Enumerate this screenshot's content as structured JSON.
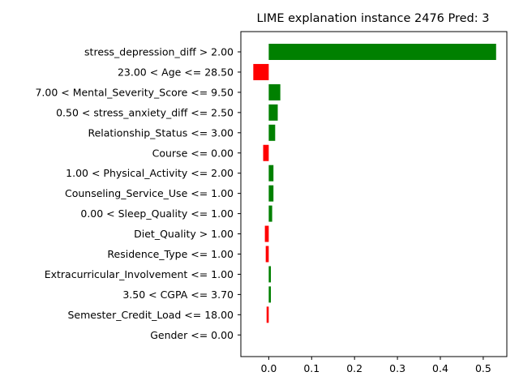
{
  "chart_data": {
    "type": "bar",
    "orientation": "horizontal",
    "title": "LIME explanation instance 2476 Pred: 3",
    "xlabel": "",
    "ylabel": "",
    "xlim": [
      -0.065,
      0.555
    ],
    "xticks": [
      0.0,
      0.1,
      0.2,
      0.3,
      0.4,
      0.5
    ],
    "xtick_labels": [
      "0.0",
      "0.1",
      "0.2",
      "0.3",
      "0.4",
      "0.5"
    ],
    "grid": false,
    "colors": {
      "positive": "#008000",
      "negative": "#ff0000"
    },
    "categories": [
      "stress_depression_diff > 2.00",
      "23.00 < Age <= 28.50",
      "7.00 < Mental_Severity_Score <= 9.50",
      "0.50 < stress_anxiety_diff <= 2.50",
      "Relationship_Status <= 3.00",
      "Course <= 0.00",
      "1.00 < Physical_Activity <= 2.00",
      "Counseling_Service_Use <= 1.00",
      "0.00 < Sleep_Quality <= 1.00",
      "Diet_Quality > 1.00",
      "Residence_Type <= 1.00",
      "Extracurricular_Involvement <= 1.00",
      "3.50 < CGPA <= 3.70",
      "Semester_Credit_Load <= 18.00",
      "Gender <= 0.00"
    ],
    "values": [
      0.53,
      -0.036,
      0.027,
      0.021,
      0.015,
      -0.013,
      0.011,
      0.011,
      0.008,
      -0.009,
      -0.007,
      0.005,
      0.005,
      -0.005,
      0.0
    ]
  }
}
